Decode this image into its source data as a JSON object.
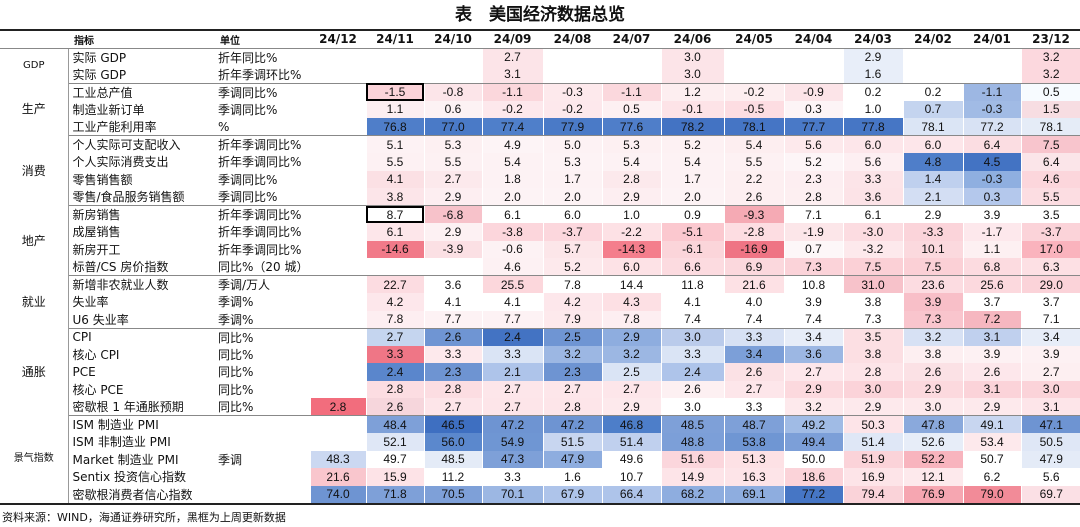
{
  "title": "表　美国经济数据总览",
  "header": {
    "indicator": "指标",
    "unit": "单位",
    "months": [
      "24/12",
      "24/11",
      "24/10",
      "24/09",
      "24/08",
      "24/07",
      "24/06",
      "24/05",
      "24/04",
      "24/03",
      "24/02",
      "24/01",
      "23/12"
    ]
  },
  "boxed_color": "#000000",
  "groups": [
    {
      "category": "GDP",
      "rows": [
        {
          "name": "实际 GDP",
          "unit": "折年同比%",
          "values": [
            "",
            "",
            "",
            "2.7",
            "",
            "",
            "3.0",
            "",
            "",
            "2.9",
            "",
            "",
            "3.2"
          ]
        },
        {
          "name": "实际 GDP",
          "unit": "折年季调环比%",
          "values": [
            "",
            "",
            "",
            "3.1",
            "",
            "",
            "3.0",
            "",
            "",
            "1.6",
            "",
            "",
            "3.2"
          ]
        }
      ]
    },
    {
      "category": "生产",
      "rows": [
        {
          "name": "工业总产值",
          "unit": "季调同比%",
          "values": [
            "",
            "-1.5",
            "-0.8",
            "-1.1",
            "-0.3",
            "-1.1",
            "1.2",
            "-0.2",
            "-0.9",
            "0.2",
            "0.2",
            "-1.1",
            "0.5"
          ]
        },
        {
          "name": "制造业新订单",
          "unit": "季调同比%",
          "values": [
            "",
            "1.1",
            "0.6",
            "-0.2",
            "-0.2",
            "0.5",
            "-0.1",
            "-0.5",
            "0.3",
            "1.0",
            "0.7",
            "-0.3",
            "1.5"
          ]
        },
        {
          "name": "工业产能利用率",
          "unit": "%",
          "values": [
            "",
            "76.8",
            "77.0",
            "77.4",
            "77.9",
            "77.6",
            "78.2",
            "78.1",
            "77.7",
            "77.8",
            "78.1",
            "77.2",
            "78.1"
          ]
        }
      ]
    },
    {
      "category": "消费",
      "rows": [
        {
          "name": "个人实际可支配收入",
          "unit": "折年季调同比%",
          "values": [
            "",
            "5.1",
            "5.3",
            "4.9",
            "5.0",
            "5.3",
            "5.2",
            "5.4",
            "5.6",
            "6.0",
            "6.0",
            "6.4",
            "7.5"
          ]
        },
        {
          "name": "个人实际消费支出",
          "unit": "折年季调同比%",
          "values": [
            "",
            "5.5",
            "5.5",
            "5.4",
            "5.3",
            "5.4",
            "5.4",
            "5.5",
            "5.2",
            "5.6",
            "4.8",
            "4.5",
            "6.4"
          ]
        },
        {
          "name": "零售销售额",
          "unit": "季调同比%",
          "values": [
            "",
            "4.1",
            "2.7",
            "1.8",
            "1.7",
            "2.8",
            "1.7",
            "2.2",
            "2.3",
            "3.3",
            "1.4",
            "-0.3",
            "4.6"
          ]
        },
        {
          "name": "零售/食品服务销售额",
          "unit": "季调同比%",
          "values": [
            "",
            "3.8",
            "2.9",
            "2.0",
            "2.0",
            "2.9",
            "2.0",
            "2.6",
            "2.8",
            "3.6",
            "2.1",
            "0.3",
            "5.5"
          ]
        }
      ]
    },
    {
      "category": "地产",
      "rows": [
        {
          "name": "新房销售",
          "unit": "折年季调同比%",
          "values": [
            "",
            "8.7",
            "-6.8",
            "6.1",
            "6.0",
            "1.0",
            "0.9",
            "-9.3",
            "7.1",
            "6.1",
            "2.9",
            "3.9",
            "3.5"
          ]
        },
        {
          "name": "成屋销售",
          "unit": "折年季调同比%",
          "values": [
            "",
            "6.1",
            "2.9",
            "-3.8",
            "-3.7",
            "-2.2",
            "-5.1",
            "-2.8",
            "-1.9",
            "-3.0",
            "-3.3",
            "-1.7",
            "-3.7"
          ]
        },
        {
          "name": "新房开工",
          "unit": "折年季调同比%",
          "values": [
            "",
            "-14.6",
            "-3.9",
            "-0.6",
            "5.7",
            "-14.3",
            "-6.1",
            "-16.9",
            "0.7",
            "-3.2",
            "10.1",
            "1.1",
            "17.0"
          ]
        },
        {
          "name": "标普/CS 房价指数",
          "unit": "同比%（20 城）",
          "values": [
            "",
            "",
            "",
            "4.6",
            "5.2",
            "6.0",
            "6.6",
            "6.9",
            "7.3",
            "7.5",
            "7.5",
            "6.8",
            "6.3"
          ]
        }
      ]
    },
    {
      "category": "就业",
      "rows": [
        {
          "name": "新增非农就业人数",
          "unit": "季调/万人",
          "values": [
            "",
            "22.7",
            "3.6",
            "25.5",
            "7.8",
            "14.4",
            "11.8",
            "21.6",
            "10.8",
            "31.0",
            "23.6",
            "25.6",
            "29.0"
          ]
        },
        {
          "name": "失业率",
          "unit": "季调%",
          "values": [
            "",
            "4.2",
            "4.1",
            "4.1",
            "4.2",
            "4.3",
            "4.1",
            "4.0",
            "3.9",
            "3.8",
            "3.9",
            "3.7",
            "3.7"
          ]
        },
        {
          "name": "U6 失业率",
          "unit": "季调%",
          "values": [
            "",
            "7.8",
            "7.7",
            "7.7",
            "7.9",
            "7.8",
            "7.4",
            "7.4",
            "7.4",
            "7.3",
            "7.3",
            "7.2",
            "7.1"
          ]
        }
      ]
    },
    {
      "category": "通胀",
      "rows": [
        {
          "name": "CPI",
          "unit": "同比%",
          "values": [
            "",
            "2.7",
            "2.6",
            "2.4",
            "2.5",
            "2.9",
            "3.0",
            "3.3",
            "3.4",
            "3.5",
            "3.2",
            "3.1",
            "3.4"
          ]
        },
        {
          "name": "核心 CPI",
          "unit": "同比%",
          "values": [
            "",
            "3.3",
            "3.3",
            "3.3",
            "3.2",
            "3.2",
            "3.3",
            "3.4",
            "3.6",
            "3.8",
            "3.8",
            "3.9",
            "3.9"
          ]
        },
        {
          "name": "PCE",
          "unit": "同比%",
          "values": [
            "",
            "2.4",
            "2.3",
            "2.1",
            "2.3",
            "2.5",
            "2.4",
            "2.6",
            "2.7",
            "2.8",
            "2.6",
            "2.6",
            "2.7"
          ]
        },
        {
          "name": "核心 PCE",
          "unit": "同比%",
          "values": [
            "",
            "2.8",
            "2.8",
            "2.7",
            "2.7",
            "2.7",
            "2.6",
            "2.7",
            "2.9",
            "3.0",
            "2.9",
            "3.1",
            "3.0"
          ]
        },
        {
          "name": "密歇根 1 年通胀预期",
          "unit": "同比%",
          "values": [
            "2.8",
            "2.6",
            "2.7",
            "2.7",
            "2.8",
            "2.9",
            "3.0",
            "3.3",
            "3.2",
            "2.9",
            "3.0",
            "2.9",
            "3.1"
          ]
        }
      ]
    },
    {
      "category": "景气指数",
      "rows": [
        {
          "name": "ISM 制造业 PMI",
          "unit": "",
          "values": [
            "",
            "48.4",
            "46.5",
            "47.2",
            "47.2",
            "46.8",
            "48.5",
            "48.7",
            "49.2",
            "50.3",
            "47.8",
            "49.1",
            "47.1"
          ]
        },
        {
          "name": "ISM 非制造业 PMI",
          "unit": "",
          "values": [
            "",
            "52.1",
            "56.0",
            "54.9",
            "51.5",
            "51.4",
            "48.8",
            "53.8",
            "49.4",
            "51.4",
            "52.6",
            "53.4",
            "50.5"
          ]
        },
        {
          "name": "Market 制造业 PMI",
          "unit": "季调",
          "values": [
            "48.3",
            "49.7",
            "48.5",
            "47.3",
            "47.9",
            "49.6",
            "51.6",
            "51.3",
            "50.0",
            "51.9",
            "52.2",
            "50.7",
            "47.9"
          ]
        },
        {
          "name": "Sentix 投资信心指数",
          "unit": "",
          "values": [
            "21.6",
            "15.9",
            "11.2",
            "3.3",
            "1.6",
            "10.7",
            "14.9",
            "16.3",
            "18.6",
            "16.9",
            "12.1",
            "6.2",
            "5.6"
          ]
        },
        {
          "name": "密歇根消费者信心指数",
          "unit": "",
          "values": [
            "74.0",
            "71.8",
            "70.5",
            "70.1",
            "67.9",
            "66.4",
            "68.2",
            "69.1",
            "77.2",
            "79.4",
            "76.9",
            "79.0",
            "69.7"
          ]
        }
      ]
    }
  ],
  "boxed_cells": [
    [
      1,
      1
    ],
    [
      3,
      1
    ]
  ],
  "row_colors": [
    [
      "#fff",
      "#fff",
      "#fff",
      "#fce4e8",
      "#fff",
      "#fff",
      "#fce4e8",
      "#fff",
      "#fff",
      "#e8eef9",
      "#fff",
      "#fff",
      "#fcd8de"
    ],
    [
      "#fff",
      "#fff",
      "#fff",
      "#fce4e8",
      "#fff",
      "#fff",
      "#fce4e8",
      "#fff",
      "#fff",
      "#e8eef9",
      "#fff",
      "#fff",
      "#fcd8de"
    ],
    [
      "#fff",
      "#fbd3d9",
      "#fce5e9",
      "#fbd7dc",
      "#fde9ec",
      "#fbd8dd",
      "#fdeef0",
      "#fdeef0",
      "#fce4e8",
      "#ffffff",
      "#fff",
      "#9db7e3",
      "#f7fbff"
    ],
    [
      "#fff",
      "#fceef1",
      "#fdf2f4",
      "#fde8ec",
      "#fde8ec",
      "#fdf0f2",
      "#fde3e7",
      "#fddde2",
      "#fdf4f6",
      "#ffffff",
      "#c4d4ef",
      "#a1bbe5",
      "#f7dde2"
    ],
    [
      "#fff",
      "#4f7ec9",
      "#4a7ac7",
      "#4f7fca",
      "#4a7ac7",
      "#4f7ec9",
      "#4373c3",
      "#4575c5",
      "#4979c7",
      "#4676c5",
      "#dbe5f5",
      "#d8e2f4",
      "#e5ecf7"
    ],
    [
      "#fff",
      "#fdf2f4",
      "#fdf0f2",
      "#fdf4f6",
      "#fdf2f4",
      "#fdf0f2",
      "#fdf1f3",
      "#fdeef0",
      "#fde9ec",
      "#fde6ea",
      "#fde6ea",
      "#fbdde2",
      "#f8c5cd"
    ],
    [
      "#fff",
      "#fdf1f3",
      "#fdf1f3",
      "#fdf2f4",
      "#fdf3f5",
      "#fdf2f4",
      "#fdf2f4",
      "#fdf1f3",
      "#fdf5f7",
      "#fdeff2",
      "#4f7ec9",
      "#4373c3",
      "#fbe5e9"
    ],
    [
      "#fff",
      "#fbe0e4",
      "#fce9ec",
      "#fdf2f4",
      "#fdf2f4",
      "#fce9ec",
      "#fdf2f4",
      "#fdeff1",
      "#fdeef1",
      "#fce4e8",
      "#bfd0ee",
      "#8fafe0",
      "#fcd6dc"
    ],
    [
      "#fff",
      "#fce5e9",
      "#fdeef1",
      "#fdf3f5",
      "#fdf3f5",
      "#fdeef1",
      "#fdf3f5",
      "#fdeff1",
      "#fdeff1",
      "#fce3e7",
      "#d3def3",
      "#b4c8ec",
      "#fcdde2"
    ],
    [
      "#fff",
      "#ffffff",
      "#f7c2ca",
      "#ffffff",
      "#ffffff",
      "#ffffff",
      "#ffffff",
      "#f5aab4",
      "#ffffff",
      "#ffffff",
      "#ffffff",
      "#ffffff",
      "#ffffff"
    ],
    [
      "#fff",
      "#fde6ea",
      "#fdf1f3",
      "#fcd6dc",
      "#fcd7dd",
      "#fde1e5",
      "#fbc8cf",
      "#fddde2",
      "#fce6e9",
      "#fcdce1",
      "#fbd4da",
      "#fde8ec",
      "#fbd3d9"
    ],
    [
      "#fff",
      "#f17a89",
      "#fbe0e4",
      "#fdf2f4",
      "#fce6e9",
      "#f47e8c",
      "#fbd5da",
      "#ef7484",
      "#fdf7f8",
      "#fde9ec",
      "#fbd9de",
      "#fdf0f2",
      "#fab3bd"
    ],
    [
      "#fff",
      "#fff",
      "#fff",
      "#fdf1f3",
      "#fde9ec",
      "#fde2e6",
      "#fcdbe0",
      "#fbd8dd",
      "#fbd3d9",
      "#fbd0d6",
      "#fbd0d6",
      "#fcdbe0",
      "#fde0e4"
    ],
    [
      "#fff",
      "#fcdce1",
      "#fff",
      "#fcd7dc",
      "#fff",
      "#fff",
      "#fff",
      "#fde1e5",
      "#fff",
      "#f7c2ca",
      "#fcdce1",
      "#fcd9de",
      "#fbd3d9"
    ],
    [
      "#fff",
      "#fde7eb",
      "#fff",
      "#fff",
      "#fde7eb",
      "#fde0e4",
      "#fff",
      "#fff",
      "#fff",
      "#fff",
      "#f8bfc8",
      "#fff",
      "#fff"
    ],
    [
      "#fff",
      "#fdeef1",
      "#fdf2f4",
      "#fdf2f4",
      "#fde9ec",
      "#fdeef1",
      "#fff",
      "#fff",
      "#fff",
      "#fff",
      "#f9c5cd",
      "#f6b7c0",
      "#fff"
    ],
    [
      "#fff",
      "#c5d5ef",
      "#6f95d3",
      "#4373c3",
      "#6f95d3",
      "#8eaddf",
      "#bacbeb",
      "#d7e1f4",
      "#e7edf8",
      "#fcdfe3",
      "#d7e1f4",
      "#c0d0ee",
      "#e7edf8"
    ],
    [
      "#fff",
      "#ef7686",
      "#fde9ec",
      "#dae4f5",
      "#9cb7e3",
      "#9cb7e3",
      "#dae4f5",
      "#7c9fd8",
      "#9cb7e3",
      "#fcdfe3",
      "#fdeff1",
      "#fdf1f3",
      "#fdf1f3"
    ],
    [
      "#fff",
      "#5a86cc",
      "#6e94d2",
      "#aec4ea",
      "#6e94d2",
      "#dae4f5",
      "#aec4ea",
      "#fbe1e5",
      "#fde7eb",
      "#fde4e8",
      "#fbe1e5",
      "#fde7eb",
      "#fdeff1"
    ],
    [
      "#fff",
      "#fcdde2",
      "#fcdde2",
      "#fde6ea",
      "#fde6ea",
      "#fde6ea",
      "#fdf0f2",
      "#fde6ea",
      "#fcd9de",
      "#fbd3d9",
      "#fcd9de",
      "#fbd3d9",
      "#fbd3d9"
    ],
    [
      "#f26d7d",
      "#f6d6dc",
      "#fde5e9",
      "#fde5e9",
      "#fde5e9",
      "#fde9ec",
      "#ffffff",
      "#ffffff",
      "#fde9ec",
      "#fde9ec",
      "#fde9ec",
      "#fde9ec",
      "#fde5e9"
    ],
    [
      "#fff",
      "#7ea0d8",
      "#3e6fc1",
      "#6e94d2",
      "#6e94d2",
      "#4d7ec9",
      "#7ea0d8",
      "#7ea0d8",
      "#a0bbe5",
      "#fde4e8",
      "#8aa9dc",
      "#c8d6f0",
      "#6e94d2"
    ],
    [
      "#fff",
      "#dfe7f6",
      "#5b88cd",
      "#6f96d3",
      "#c8d6f0",
      "#c0d0ee",
      "#7c9fd8",
      "#6f96d3",
      "#7c9fd8",
      "#dfe7f6",
      "#e7edf8",
      "#fde9ec",
      "#dfe7f6"
    ],
    [
      "#cbd8f1",
      "#ffffff",
      "#e4ebf7",
      "#7ea0d8",
      "#8eaddf",
      "#ffffff",
      "#fbd6dc",
      "#fde1e5",
      "#ffffff",
      "#fbd3d9",
      "#f8b4be",
      "#ffffff",
      "#e4ebf7"
    ],
    [
      "#f9c6cd",
      "#fde3e7",
      "#ffffff",
      "#ffffff",
      "#ffffff",
      "#ffffff",
      "#fde4e8",
      "#fde4e8",
      "#fbd3d9",
      "#fde4e8",
      "#fde9ec",
      "#ffffff",
      "#ffffff"
    ],
    [
      "#6e94d2",
      "#7ea0d8",
      "#7ea0d8",
      "#9cb7e3",
      "#aec4ea",
      "#aec4ea",
      "#8eaddf",
      "#8eaddf",
      "#4676c5",
      "#fad3d9",
      "#f6a6b1",
      "#f28b98",
      "#fbe0e5"
    ]
  ],
  "source": "资料来源：WIND，海通证券研究所，黑框为上周更新数据"
}
